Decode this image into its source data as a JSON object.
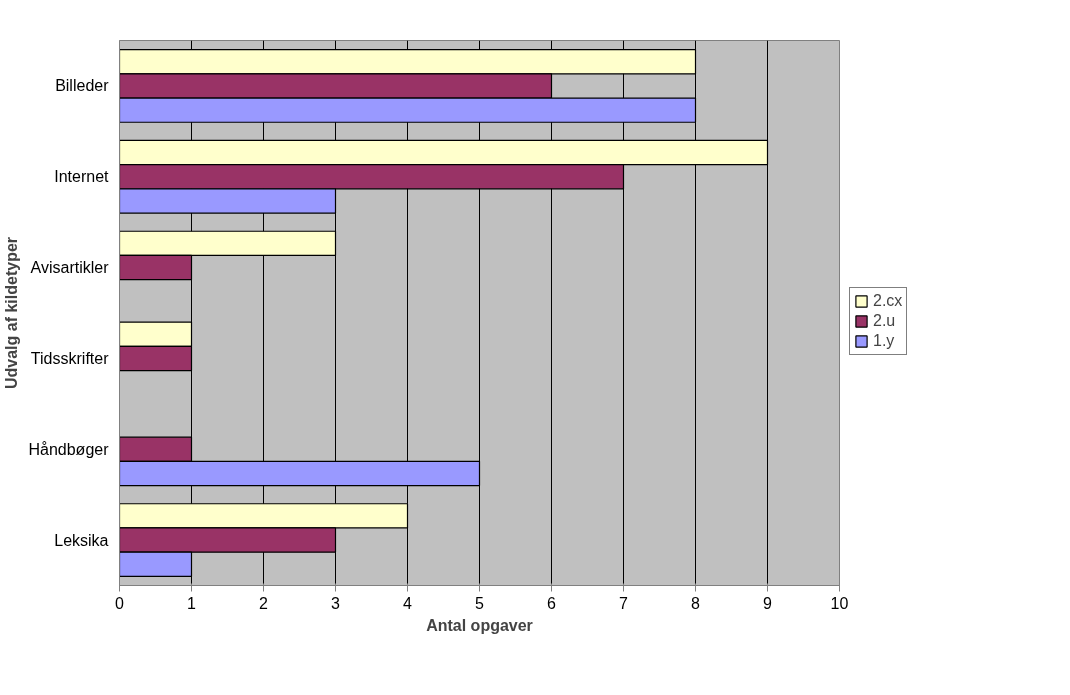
{
  "chart_data": {
    "type": "bar",
    "orientation": "horizontal",
    "xlabel": "Antal opgaver",
    "ylabel": "Udvalg af kildetyper",
    "categories": [
      "Billeder",
      "Internet",
      "Avisartikler",
      "Tidsskrifter",
      "Håndbøger",
      "Leksika"
    ],
    "series": [
      {
        "name": "2.cx",
        "color": "#ffffcc",
        "values": [
          8,
          9,
          3,
          1,
          null,
          4
        ]
      },
      {
        "name": "2.u",
        "color": "#993366",
        "values": [
          6,
          7,
          1,
          1,
          1,
          3
        ]
      },
      {
        "name": "1.y",
        "color": "#9999ff",
        "values": [
          8,
          3,
          null,
          null,
          5,
          1
        ]
      }
    ],
    "xlim": [
      0,
      10
    ],
    "xticks": [
      0,
      1,
      2,
      3,
      4,
      5,
      6,
      7,
      8,
      9,
      10
    ],
    "grid": "x",
    "legend": "right"
  }
}
